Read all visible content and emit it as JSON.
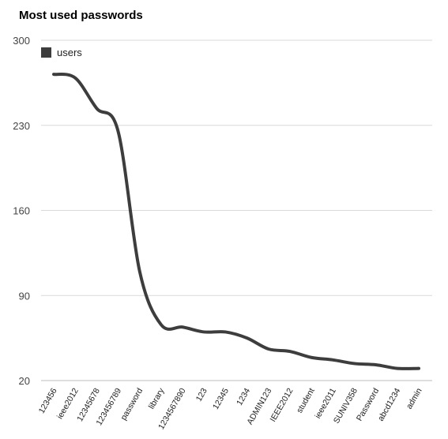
{
  "chart_data": {
    "type": "line",
    "title": "Most used passwords",
    "xlabel": "",
    "ylabel": "",
    "categories": [
      "123456",
      "ieee2012",
      "12345678",
      "123456789",
      "password",
      "library",
      "1234567890",
      "123",
      "12345",
      "1234",
      "ADMIN123",
      "IEEE2012",
      "student",
      "ieee2011",
      "SUNIV358",
      "Password",
      "abcd1234",
      "admin"
    ],
    "series": [
      {
        "name": "users",
        "color": "#3d3d3d",
        "values": [
          272,
          269,
          244,
          225,
          110,
          66,
          64,
          60,
          60,
          55,
          46,
          44,
          39,
          37,
          34,
          33,
          30,
          30
        ]
      }
    ],
    "ylim": [
      20,
      300
    ],
    "yticks": [
      20,
      90,
      160,
      230,
      300
    ],
    "grid": true,
    "legend": "top-left",
    "colors": {
      "line": "#3d3d3d",
      "grid": "#d9d9d9",
      "background": "#ffffff"
    }
  }
}
